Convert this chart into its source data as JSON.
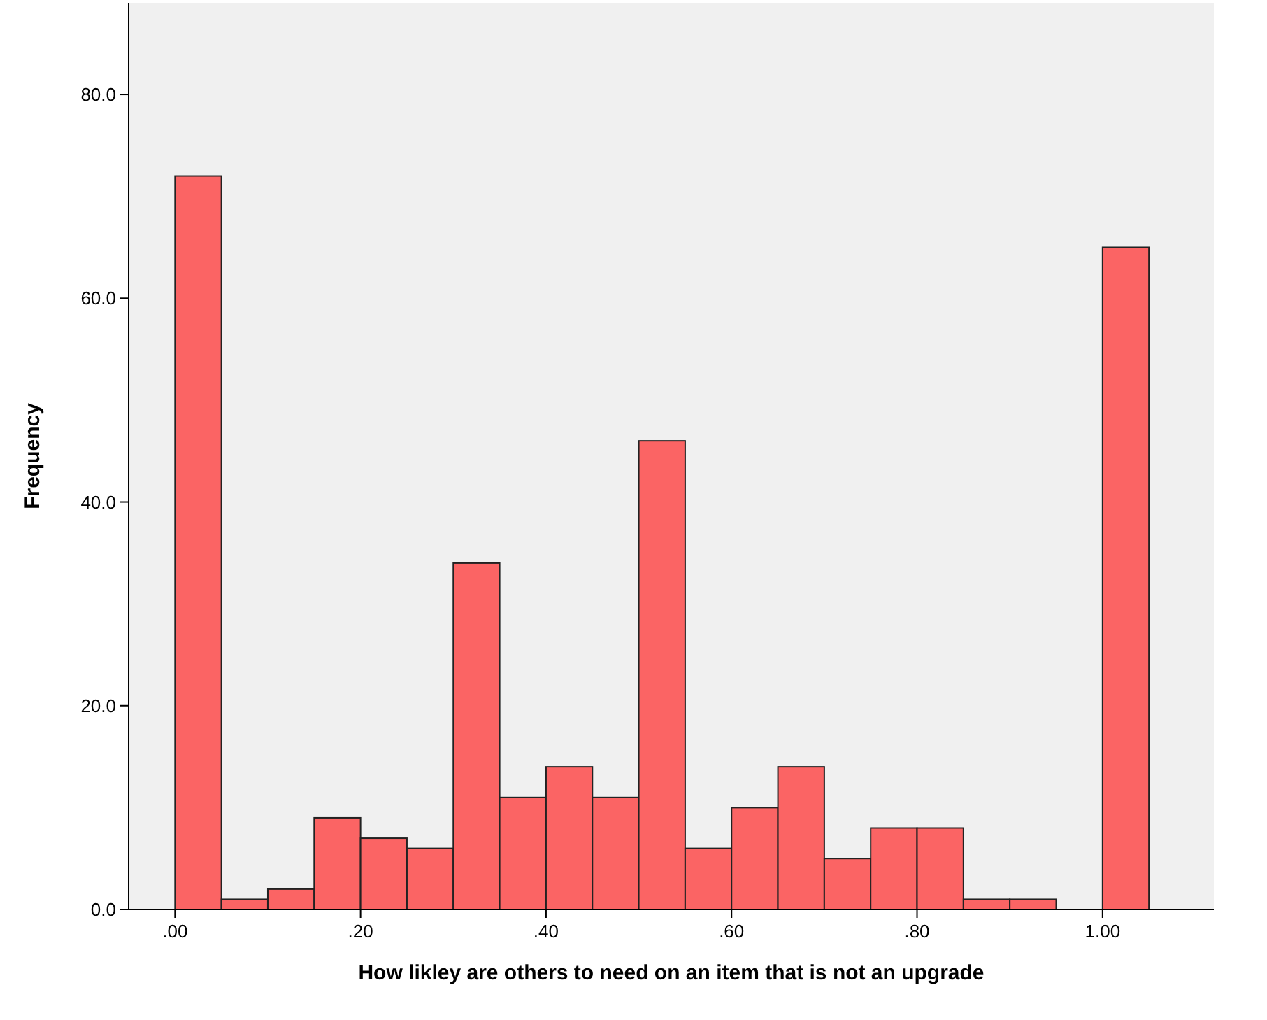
{
  "chart_data": {
    "type": "histogram",
    "xlabel": "How likley are others to need on an item that is not an upgrade",
    "ylabel": "Frequency",
    "bins": [
      0,
      0.05,
      0.1,
      0.15,
      0.2,
      0.25,
      0.3,
      0.35,
      0.4,
      0.45,
      0.5,
      0.55,
      0.6,
      0.65,
      0.7,
      0.75,
      0.8,
      0.85,
      0.9,
      0.95,
      1,
      1.05
    ],
    "values": [
      72,
      1,
      2,
      9,
      7,
      6,
      34,
      11,
      14,
      11,
      46,
      6,
      10,
      14,
      5,
      8,
      8,
      1,
      1,
      0,
      65
    ],
    "color": "#fb6464",
    "xlim": [
      -0.05,
      1.12
    ],
    "xticks": [
      {
        "value": 0,
        "label": ".00"
      },
      {
        "value": 0.2,
        "label": ".20"
      },
      {
        "value": 0.4,
        "label": ".40"
      },
      {
        "value": 0.6,
        "label": ".60"
      },
      {
        "value": 0.8,
        "label": ".80"
      },
      {
        "value": 1,
        "label": "1.00"
      }
    ],
    "ylim": [
      0,
      89
    ],
    "yticks": [
      {
        "value": 0,
        "label": "0.0"
      },
      {
        "value": 20,
        "label": "20.0"
      },
      {
        "value": 40,
        "label": "40.0"
      },
      {
        "value": 60,
        "label": "60.0"
      },
      {
        "value": 80,
        "label": "80.0"
      }
    ],
    "grid": false
  }
}
